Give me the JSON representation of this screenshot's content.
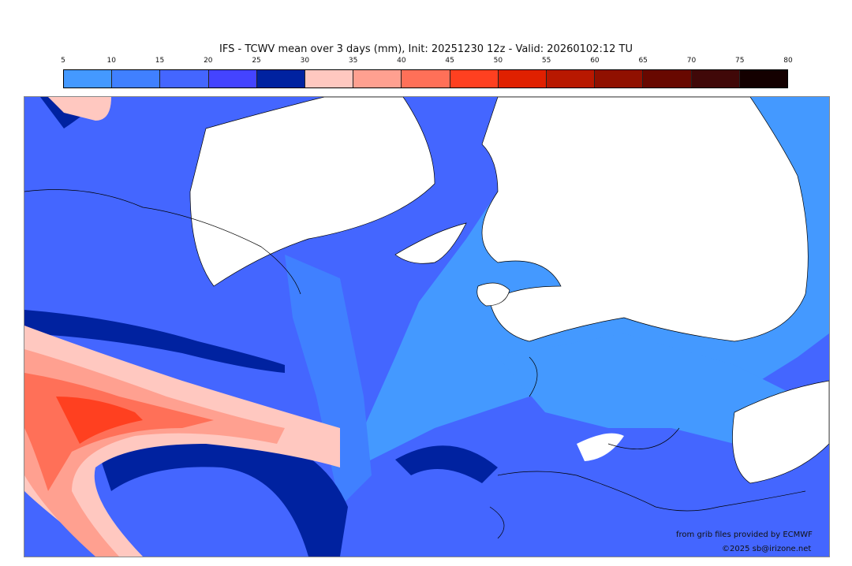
{
  "title": "IFS - TCWV mean over 3 days (mm), Init: 20251230 12z - Valid: 20260102:12 TU",
  "colorbar": {
    "ticks": [
      "5",
      "10",
      "15",
      "20",
      "25",
      "30",
      "35",
      "40",
      "45",
      "50",
      "55",
      "60",
      "65",
      "70",
      "75",
      "80"
    ],
    "colors": [
      "#4499ff",
      "#4080ff",
      "#4466ff",
      "#4444ff",
      "#0022a0",
      "#ffc8c0",
      "#ffa090",
      "#ff7058",
      "#ff4020",
      "#e02000",
      "#b81800",
      "#901000",
      "#680800",
      "#400808",
      "#140000"
    ]
  },
  "credits": {
    "source": "from grib files provided by ECMWF",
    "copyright": "©2025 sb@irizone.net"
  }
}
